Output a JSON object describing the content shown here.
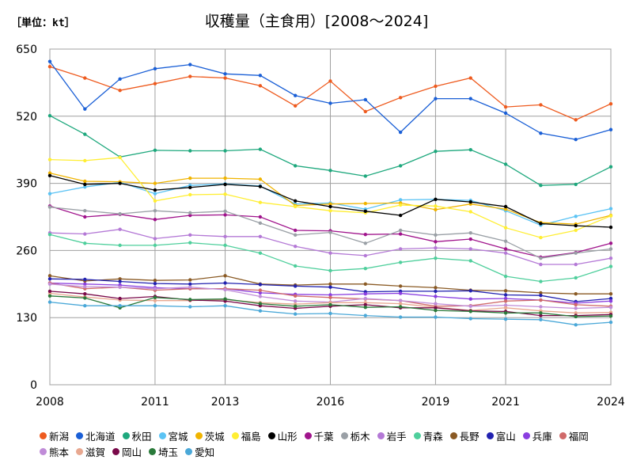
{
  "header": {
    "unit": "［単位：kt］",
    "title": "収穫量（主食用）[2008～2024]"
  },
  "chart_data": {
    "type": "line",
    "title": "収穫量（主食用）[2008～2024]",
    "unit": "［単位：kt］",
    "x": [
      2008,
      2009,
      2010,
      2011,
      2012,
      2013,
      2014,
      2015,
      2016,
      2017,
      2018,
      2019,
      2020,
      2021,
      2022,
      2023,
      2024
    ],
    "xtick_labels": [
      "2008",
      "2011",
      "2013",
      "2016",
      "2019",
      "2021",
      "2024"
    ],
    "yticks": [
      0,
      130,
      260,
      390,
      520,
      650
    ],
    "ylim": [
      0,
      650
    ],
    "grid": true,
    "legend_position": "bottom",
    "series": [
      {
        "name": "新潟",
        "color": "#ee5b1f",
        "values": [
          616,
          594,
          570,
          583,
          597,
          594,
          579,
          540,
          588,
          529,
          556,
          578,
          594,
          538,
          542,
          513,
          544
        ]
      },
      {
        "name": "北海道",
        "color": "#1a5fd6",
        "values": [
          626,
          534,
          592,
          612,
          620,
          602,
          599,
          560,
          545,
          552,
          489,
          554,
          554,
          526,
          487,
          475,
          494
        ]
      },
      {
        "name": "秋田",
        "color": "#1ea87d",
        "values": [
          521,
          485,
          441,
          454,
          453,
          453,
          456,
          424,
          415,
          404,
          424,
          452,
          455,
          427,
          386,
          388,
          422
        ]
      },
      {
        "name": "宮城",
        "color": "#5bc3f4",
        "values": [
          370,
          383,
          392,
          370,
          386,
          389,
          385,
          350,
          352,
          340,
          358,
          359,
          357,
          337,
          309,
          326,
          341
        ]
      },
      {
        "name": "茨城",
        "color": "#f0b400",
        "values": [
          410,
          394,
          393,
          390,
          400,
          400,
          398,
          347,
          350,
          351,
          352,
          339,
          350,
          340,
          314,
          311,
          328
        ]
      },
      {
        "name": "福島",
        "color": "#ffee33",
        "values": [
          436,
          434,
          440,
          356,
          368,
          369,
          353,
          345,
          337,
          333,
          348,
          346,
          335,
          304,
          285,
          299,
          327
        ]
      },
      {
        "name": "山形",
        "color": "#000000",
        "values": [
          405,
          388,
          390,
          377,
          382,
          388,
          384,
          356,
          345,
          336,
          328,
          359,
          354,
          345,
          312,
          308,
          305
        ]
      },
      {
        "name": "千葉",
        "color": "#a0148c",
        "values": [
          346,
          325,
          330,
          320,
          328,
          329,
          325,
          299,
          298,
          291,
          292,
          277,
          282,
          263,
          247,
          256,
          274
        ]
      },
      {
        "name": "栃木",
        "color": "#9aa0a6",
        "values": [
          344,
          337,
          331,
          337,
          333,
          336,
          313,
          290,
          295,
          274,
          299,
          290,
          294,
          278,
          245,
          255,
          263
        ]
      },
      {
        "name": "岩手",
        "color": "#b479d6",
        "values": [
          294,
          292,
          301,
          283,
          290,
          287,
          287,
          268,
          255,
          250,
          263,
          265,
          263,
          255,
          233,
          233,
          245
        ]
      },
      {
        "name": "青森",
        "color": "#4fcf9c",
        "values": [
          291,
          274,
          270,
          270,
          275,
          270,
          255,
          230,
          221,
          225,
          237,
          245,
          240,
          210,
          200,
          207,
          229
        ]
      },
      {
        "name": "長野",
        "color": "#8a5a24",
        "values": [
          211,
          201,
          205,
          202,
          203,
          211,
          195,
          193,
          195,
          195,
          191,
          188,
          183,
          182,
          178,
          176,
          176
        ]
      },
      {
        "name": "富山",
        "color": "#2222b0",
        "values": [
          205,
          204,
          200,
          196,
          195,
          197,
          194,
          191,
          189,
          180,
          181,
          181,
          182,
          174,
          173,
          161,
          167
        ]
      },
      {
        "name": "兵庫",
        "color": "#8a3ee0",
        "values": [
          197,
          195,
          193,
          188,
          186,
          186,
          178,
          175,
          174,
          176,
          177,
          171,
          166,
          167,
          164,
          158,
          162
        ]
      },
      {
        "name": "福岡",
        "color": "#d06a6a",
        "values": [
          197,
          186,
          189,
          183,
          186,
          186,
          183,
          172,
          169,
          166,
          163,
          152,
          153,
          162,
          164,
          155,
          152
        ]
      },
      {
        "name": "熊本",
        "color": "#c08cd8",
        "values": [
          195,
          190,
          189,
          186,
          189,
          184,
          171,
          162,
          160,
          167,
          163,
          157,
          152,
          154,
          151,
          148,
          150
        ]
      },
      {
        "name": "滋賀",
        "color": "#e8a890",
        "values": [
          177,
          170,
          164,
          163,
          163,
          165,
          159,
          156,
          159,
          159,
          157,
          150,
          144,
          149,
          143,
          139,
          140
        ]
      },
      {
        "name": "岡山",
        "color": "#7a0a4a",
        "values": [
          181,
          176,
          167,
          171,
          164,
          162,
          153,
          148,
          152,
          155,
          149,
          149,
          143,
          142,
          134,
          134,
          136
        ]
      },
      {
        "name": "埼玉",
        "color": "#2a7a3a",
        "values": [
          172,
          168,
          149,
          169,
          165,
          166,
          157,
          152,
          155,
          150,
          151,
          144,
          142,
          139,
          139,
          132,
          133
        ]
      },
      {
        "name": "愛知",
        "color": "#4aa8d8",
        "values": [
          160,
          153,
          153,
          153,
          151,
          153,
          143,
          137,
          138,
          134,
          131,
          131,
          128,
          127,
          126,
          116,
          121
        ]
      }
    ]
  }
}
